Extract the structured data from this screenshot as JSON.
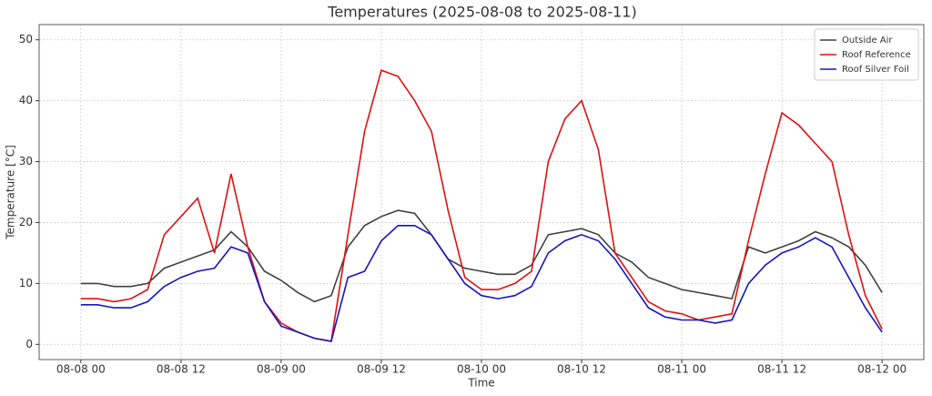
{
  "chart_data": {
    "type": "line",
    "title": "Temperatures (2025-08-08 to 2025-08-11)",
    "xlabel": "Time",
    "ylabel": "Temperature [°C]",
    "x": [
      "08-08 00",
      "08-08 02",
      "08-08 04",
      "08-08 06",
      "08-08 08",
      "08-08 10",
      "08-08 12",
      "08-08 14",
      "08-08 16",
      "08-08 18",
      "08-08 20",
      "08-08 22",
      "08-09 00",
      "08-09 02",
      "08-09 04",
      "08-09 06",
      "08-09 08",
      "08-09 10",
      "08-09 12",
      "08-09 14",
      "08-09 16",
      "08-09 18",
      "08-09 20",
      "08-09 22",
      "08-10 00",
      "08-10 02",
      "08-10 04",
      "08-10 06",
      "08-10 08",
      "08-10 10",
      "08-10 12",
      "08-10 14",
      "08-10 16",
      "08-10 18",
      "08-10 20",
      "08-10 22",
      "08-11 00",
      "08-11 02",
      "08-11 04",
      "08-11 06",
      "08-11 08",
      "08-11 10",
      "08-11 12",
      "08-11 14",
      "08-11 16",
      "08-11 18",
      "08-11 20",
      "08-11 22",
      "08-12 00"
    ],
    "series": [
      {
        "name": "Outside Air",
        "color": "#404040",
        "values": [
          10,
          10,
          9.5,
          9.5,
          10,
          12.5,
          13.5,
          14.5,
          15.5,
          18.5,
          16,
          12,
          10.5,
          8.5,
          7,
          8,
          16,
          19.5,
          21,
          22,
          21.5,
          18,
          14,
          12.5,
          12,
          11.5,
          11.5,
          13,
          18,
          18.5,
          19,
          18,
          15,
          13.5,
          11,
          10,
          9,
          8.5,
          8,
          7.5,
          16,
          15,
          16,
          17,
          18.5,
          17.5,
          16,
          13,
          8.5
        ]
      },
      {
        "name": "Roof Reference",
        "color": "#e01010",
        "values": [
          7.5,
          7.5,
          7,
          7.5,
          9,
          18,
          21,
          24,
          15,
          28,
          16,
          7,
          3.5,
          2,
          1,
          0.5,
          18,
          35,
          45,
          44,
          40,
          35,
          22,
          11,
          9,
          9,
          10,
          12,
          30,
          37,
          40,
          32,
          15,
          11,
          7,
          5.5,
          5,
          4,
          4.5,
          5,
          17,
          28,
          38,
          36,
          33,
          30,
          18,
          8,
          2.5
        ]
      },
      {
        "name": "Roof Silver Foil",
        "color": "#1515c0",
        "values": [
          6.5,
          6.5,
          6,
          6,
          7,
          9.5,
          11,
          12,
          12.5,
          16,
          15,
          7,
          3,
          2,
          1,
          0.5,
          11,
          12,
          17,
          19.5,
          19.5,
          18,
          14,
          10,
          8,
          7.5,
          8,
          9.5,
          15,
          17,
          18,
          17,
          14,
          10,
          6,
          4.5,
          4,
          4,
          3.5,
          4,
          10,
          13,
          15,
          16,
          17.5,
          16,
          11,
          6,
          2
        ]
      }
    ],
    "xlim": [
      "08-07 19",
      "08-12 05"
    ],
    "xticks": [
      "08-08 00",
      "08-08 12",
      "08-09 00",
      "08-09 12",
      "08-10 00",
      "08-10 12",
      "08-11 00",
      "08-11 12",
      "08-12 00"
    ],
    "ylim": [
      -2.5,
      52.5
    ],
    "yticks": [
      0,
      10,
      20,
      30,
      40,
      50
    ],
    "grid": true,
    "legend": "upper right"
  }
}
